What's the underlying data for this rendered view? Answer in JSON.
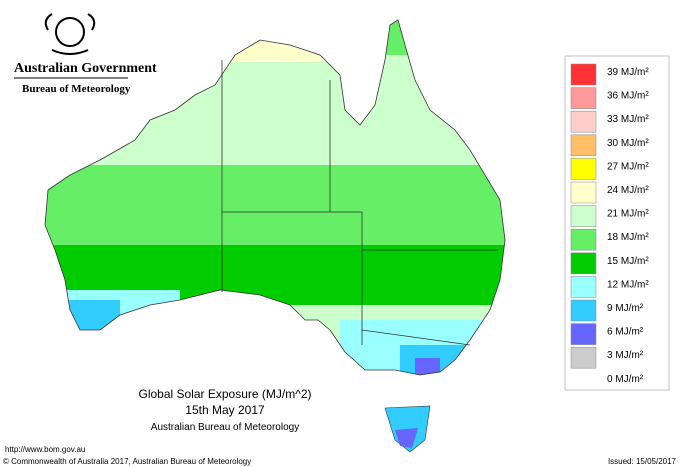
{
  "header": {
    "government": "Australian Government",
    "agency": "Bureau of Meteorology"
  },
  "legend": {
    "labels": [
      "39 MJ/m²",
      "36 MJ/m²",
      "33 MJ/m²",
      "30 MJ/m²",
      "27 MJ/m²",
      "24 MJ/m²",
      "21 MJ/m²",
      "18 MJ/m²",
      "15 MJ/m²",
      "12 MJ/m²",
      "9 MJ/m²",
      "6 MJ/m²",
      "3 MJ/m²",
      "0 MJ/m²"
    ],
    "colors": [
      "#ff3333",
      "#ff9999",
      "#ffcccc",
      "#ffbf66",
      "#ffff00",
      "#ffffcc",
      "#ccffcc",
      "#66ee66",
      "#00cc00",
      "#99ffff",
      "#33ccff",
      "#6666ff",
      "#cccccc"
    ]
  },
  "map_title": {
    "title": "Global Solar Exposure (MJ/m^2)",
    "date": "15th May 2017",
    "source": "Australian Bureau of Meteorology"
  },
  "footer": {
    "url": "http://www.bom.gov.au",
    "copyright": "© Commonwealth of Australia 2017, Australian Bureau of Meteorology",
    "issued": "Issued: 15/05/2017"
  }
}
